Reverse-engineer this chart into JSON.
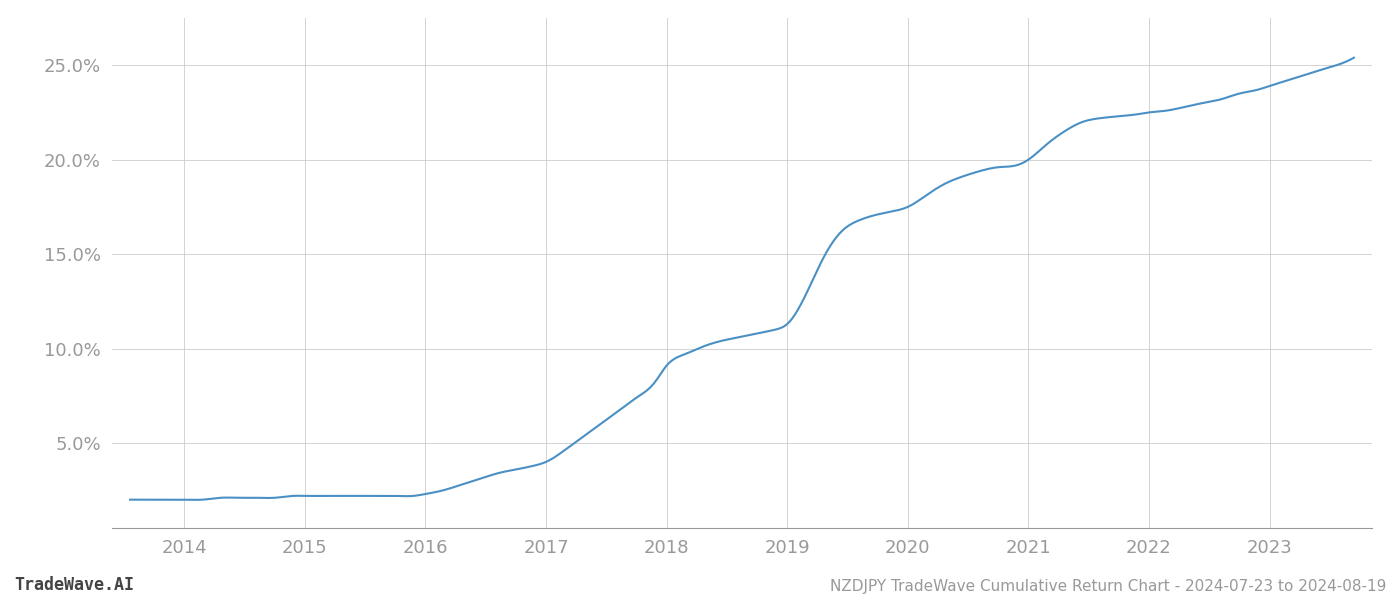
{
  "title": "NZDJPY TradeWave Cumulative Return Chart - 2024-07-23 to 2024-08-19",
  "watermark": "TradeWave.AI",
  "line_color": "#4a90c4",
  "background_color": "#ffffff",
  "grid_color": "#cccccc",
  "x_years": [
    2014,
    2015,
    2016,
    2017,
    2018,
    2019,
    2020,
    2021,
    2022,
    2023
  ],
  "y_ticks": [
    0.05,
    0.1,
    0.15,
    0.2,
    0.25
  ],
  "y_tick_labels": [
    "5.0%",
    "10.0%",
    "15.0%",
    "20.0%",
    "25.0%"
  ],
  "xlim": [
    2013.4,
    2023.85
  ],
  "ylim": [
    0.005,
    0.275
  ],
  "data_x": [
    2013.55,
    2013.65,
    2013.75,
    2013.85,
    2013.95,
    2014.0,
    2014.15,
    2014.3,
    2014.45,
    2014.6,
    2014.75,
    2014.9,
    2015.0,
    2015.15,
    2015.3,
    2015.45,
    2015.6,
    2015.75,
    2015.9,
    2016.0,
    2016.15,
    2016.3,
    2016.45,
    2016.6,
    2016.75,
    2016.9,
    2017.0,
    2017.15,
    2017.3,
    2017.45,
    2017.6,
    2017.75,
    2017.9,
    2018.0,
    2018.15,
    2018.3,
    2018.45,
    2018.6,
    2018.75,
    2018.9,
    2019.0,
    2019.15,
    2019.3,
    2019.45,
    2019.6,
    2019.75,
    2019.9,
    2020.0,
    2020.15,
    2020.3,
    2020.45,
    2020.6,
    2020.75,
    2020.9,
    2021.0,
    2021.15,
    2021.3,
    2021.45,
    2021.6,
    2021.75,
    2021.9,
    2022.0,
    2022.15,
    2022.3,
    2022.45,
    2022.6,
    2022.75,
    2022.9,
    2023.0,
    2023.15,
    2023.3,
    2023.45,
    2023.6,
    2023.7
  ],
  "data_y": [
    0.02,
    0.02,
    0.02,
    0.02,
    0.02,
    0.02,
    0.02,
    0.021,
    0.021,
    0.021,
    0.021,
    0.022,
    0.022,
    0.022,
    0.022,
    0.022,
    0.022,
    0.022,
    0.022,
    0.023,
    0.025,
    0.028,
    0.031,
    0.034,
    0.036,
    0.038,
    0.04,
    0.046,
    0.053,
    0.06,
    0.067,
    0.074,
    0.082,
    0.091,
    0.097,
    0.101,
    0.104,
    0.106,
    0.108,
    0.11,
    0.113,
    0.128,
    0.148,
    0.162,
    0.168,
    0.171,
    0.173,
    0.175,
    0.181,
    0.187,
    0.191,
    0.194,
    0.196,
    0.197,
    0.2,
    0.208,
    0.215,
    0.22,
    0.222,
    0.223,
    0.224,
    0.225,
    0.226,
    0.228,
    0.23,
    0.232,
    0.235,
    0.237,
    0.239,
    0.242,
    0.245,
    0.248,
    0.251,
    0.254
  ]
}
